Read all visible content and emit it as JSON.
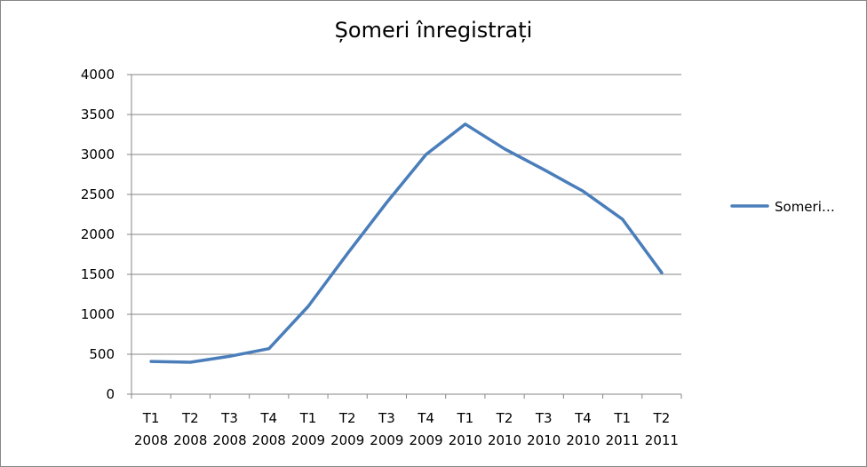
{
  "chart_data": {
    "type": "line",
    "title": "Șomeri înregistrați",
    "xlabel": "",
    "ylabel": "",
    "categories": [
      [
        "T1",
        "2008"
      ],
      [
        "T2",
        "2008"
      ],
      [
        "T3",
        "2008"
      ],
      [
        "T4",
        "2008"
      ],
      [
        "T1",
        "2009"
      ],
      [
        "T2",
        "2009"
      ],
      [
        "T3",
        "2009"
      ],
      [
        "T4",
        "2009"
      ],
      [
        "T1",
        "2010"
      ],
      [
        "T2",
        "2010"
      ],
      [
        "T3",
        "2010"
      ],
      [
        "T4",
        "2010"
      ],
      [
        "T1",
        "2011"
      ],
      [
        "T2",
        "2011"
      ]
    ],
    "series": [
      {
        "name": "Someri…",
        "color": "#4A7EBB",
        "values": [
          410,
          400,
          475,
          570,
          1100,
          1760,
          2400,
          3000,
          3380,
          3070,
          2810,
          2540,
          2190,
          1520
        ]
      }
    ],
    "yticks": [
      0,
      500,
      1000,
      1500,
      2000,
      2500,
      3000,
      3500,
      4000
    ],
    "ylim": [
      0,
      4000
    ],
    "grid": true,
    "legend_position": "right"
  }
}
